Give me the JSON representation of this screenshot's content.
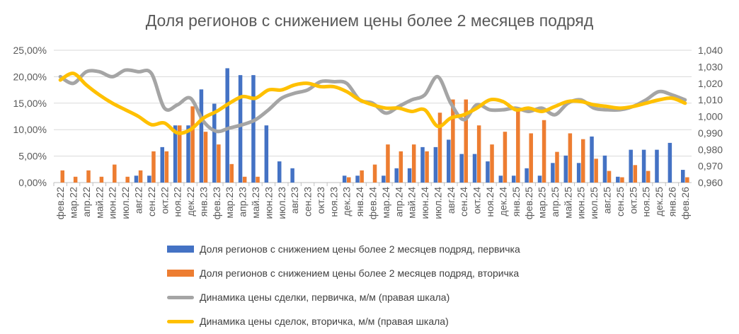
{
  "chart_data": {
    "type": "bar+line",
    "title": "Доля регионов с снижением цены более 2 месяцев подряд",
    "categories": [
      "фев.22",
      "мар.22",
      "апр.22",
      "май.22",
      "июн.22",
      "июл.22",
      "авг.22",
      "сен.22",
      "окт.22",
      "ноя.22",
      "дек.22",
      "янв.23",
      "фев.23",
      "мар.23",
      "апр.23",
      "май.23",
      "июн.23",
      "июл.23",
      "авг.23",
      "сен.23",
      "окт.23",
      "ноя.23",
      "дек.23",
      "янв.24",
      "фев.24",
      "мар.24",
      "апр.24",
      "май.24",
      "июн.24",
      "июл.24",
      "авг.24",
      "сен.24",
      "окт.24",
      "ноя.24",
      "дек.24",
      "янв.25",
      "фев.25",
      "мар.25",
      "апр.25",
      "май.25",
      "июн.25",
      "июл.25",
      "авг.25",
      "сен.25",
      "окт.25",
      "ноя.25",
      "дек.25",
      "янв.26",
      "фев.26"
    ],
    "left_axis": {
      "ylim": [
        0,
        25
      ],
      "ticks": [
        "0,00%",
        "5,00%",
        "10,00%",
        "15,00%",
        "20,00%",
        "25,00%"
      ]
    },
    "right_axis": {
      "ylim": [
        0.96,
        1.04
      ],
      "ticks": [
        "0,960",
        "0,970",
        "0,980",
        "0,990",
        "1,000",
        "1,010",
        "1,020",
        "1,030",
        "1,040"
      ]
    },
    "grid": true,
    "legend_position": "bottom",
    "series": [
      {
        "name": "Доля регионов с снижением цены более 2 месяцев подряд, первичка",
        "type": "bar",
        "axis": "left",
        "color": "#4472C4",
        "values": [
          0,
          0,
          0,
          0,
          0,
          0,
          1.3,
          1.3,
          6.7,
          10.8,
          10.8,
          17.6,
          14.9,
          21.6,
          20.3,
          20.3,
          10.8,
          4.0,
          2.7,
          0,
          0,
          0,
          1.3,
          1.3,
          0,
          1.3,
          2.7,
          2.7,
          6.7,
          6.7,
          8.1,
          5.4,
          5.4,
          4.0,
          1.3,
          1.3,
          2.7,
          1.3,
          3.7,
          5.1,
          3.7,
          8.7,
          5.1,
          1.1,
          6.2,
          6.2,
          6.2,
          7.5,
          2.4
        ]
      },
      {
        "name": "Доля регионов с снижением цены более 2 месяцев подряд, вторичка",
        "type": "bar",
        "axis": "left",
        "color": "#ED7D31",
        "values": [
          2.3,
          1.1,
          2.3,
          1.1,
          3.4,
          1.1,
          2.3,
          5.9,
          5.9,
          10.8,
          14.4,
          9.6,
          7.2,
          3.5,
          1.1,
          1.1,
          0,
          0,
          0,
          0,
          0,
          0,
          1.0,
          2.3,
          3.4,
          7.2,
          5.9,
          7.2,
          5.9,
          13.2,
          15.7,
          15.7,
          10.8,
          7.2,
          9.6,
          13.9,
          9.3,
          11.8,
          5.8,
          9.3,
          8.2,
          4.5,
          2.2,
          1.0,
          3.3,
          2.2,
          0,
          0,
          1.0
        ]
      },
      {
        "name": "Динамика цены сделки, первичка, м/м (правая шкала)",
        "type": "line",
        "axis": "right",
        "color": "#A5A5A5",
        "values": [
          1.024,
          1.02,
          1.027,
          1.027,
          1.024,
          1.028,
          1.027,
          1.026,
          1.005,
          1.007,
          1.011,
          0.997,
          0.991,
          0.993,
          0.995,
          0.998,
          1.004,
          1.011,
          1.014,
          1.016,
          1.021,
          1.021,
          1.02,
          1.01,
          1.008,
          1.002,
          1.006,
          1.01,
          1.013,
          1.024,
          1.008,
          0.998,
          1.007,
          1.004,
          1.004,
          1.005,
          1.003,
          1.005,
          1.001,
          1.008,
          1.01,
          1.005,
          1.004,
          1.004,
          1.006,
          1.01,
          1.015,
          1.013,
          1.01
        ]
      },
      {
        "name": "Динамика цены сделок, вторичка, м/м (правая шкала)",
        "type": "line",
        "axis": "right",
        "color": "#FFC000",
        "values": [
          1.022,
          1.026,
          1.019,
          1.013,
          1.008,
          1.004,
          1.0,
          0.995,
          0.996,
          0.99,
          0.992,
          0.999,
          1.003,
          1.008,
          1.012,
          1.011,
          1.016,
          1.016,
          1.019,
          1.02,
          1.018,
          1.018,
          1.015,
          1.01,
          1.007,
          1.005,
          1.005,
          1.003,
          1.004,
          0.994,
          0.999,
          1.001,
          1.005,
          1.01,
          1.009,
          1.004,
          1.005,
          1.003,
          1.006,
          1.009,
          1.009,
          1.007,
          1.006,
          1.005,
          1.006,
          1.008,
          1.01,
          1.011,
          1.008
        ]
      }
    ]
  }
}
